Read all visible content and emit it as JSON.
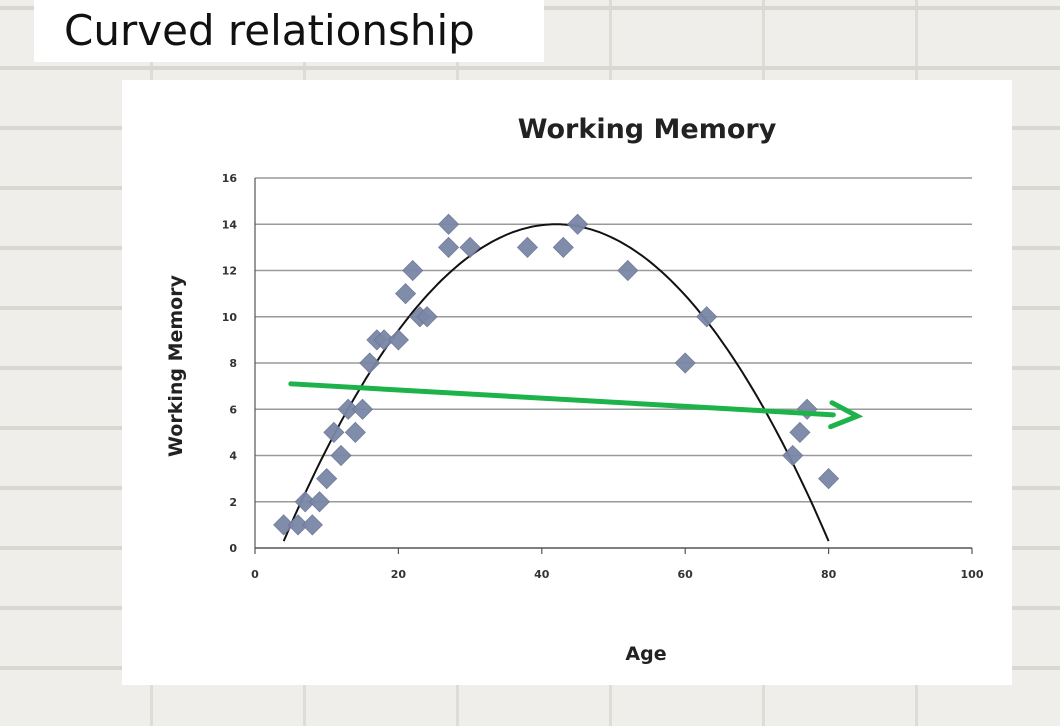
{
  "slide": {
    "title": "Curved relationship"
  },
  "colors": {
    "points": "#7a87a6",
    "curve": "#111111",
    "arrow": "#1db34a",
    "grid": "#9a9a9a"
  },
  "chart_data": {
    "type": "scatter",
    "title": "Working Memory",
    "xlabel": "Age",
    "ylabel": "Working Memory",
    "xlim": [
      0,
      100
    ],
    "ylim": [
      0,
      16
    ],
    "xticks": [
      0,
      20,
      40,
      60,
      80,
      100
    ],
    "yticks": [
      0,
      2,
      4,
      6,
      8,
      10,
      12,
      14,
      16
    ],
    "grid": "horizontal",
    "series": [
      {
        "points": [
          [
            4,
            1
          ],
          [
            6,
            1
          ],
          [
            7,
            2
          ],
          [
            8,
            1
          ],
          [
            9,
            2
          ],
          [
            10,
            3
          ],
          [
            11,
            5
          ],
          [
            12,
            4
          ],
          [
            13,
            6
          ],
          [
            14,
            5
          ],
          [
            15,
            6
          ],
          [
            16,
            8
          ],
          [
            17,
            9
          ],
          [
            18,
            9
          ],
          [
            20,
            9
          ],
          [
            21,
            11
          ],
          [
            22,
            12
          ],
          [
            23,
            10
          ],
          [
            24,
            10
          ],
          [
            27,
            13
          ],
          [
            27,
            14
          ],
          [
            30,
            13
          ],
          [
            38,
            13
          ],
          [
            43,
            13
          ],
          [
            45,
            14
          ],
          [
            52,
            12
          ],
          [
            60,
            8
          ],
          [
            63,
            10
          ],
          [
            75,
            4
          ],
          [
            76,
            5
          ],
          [
            77,
            6
          ],
          [
            80,
            3
          ]
        ]
      }
    ],
    "trend_curve": {
      "type": "quadratic",
      "vertex": [
        42,
        14
      ],
      "x_range": [
        4,
        80
      ],
      "y_at_start": 0.3
    },
    "annotation_arrow": {
      "from": [
        5,
        7.1
      ],
      "to": [
        84,
        5.7
      ]
    }
  }
}
